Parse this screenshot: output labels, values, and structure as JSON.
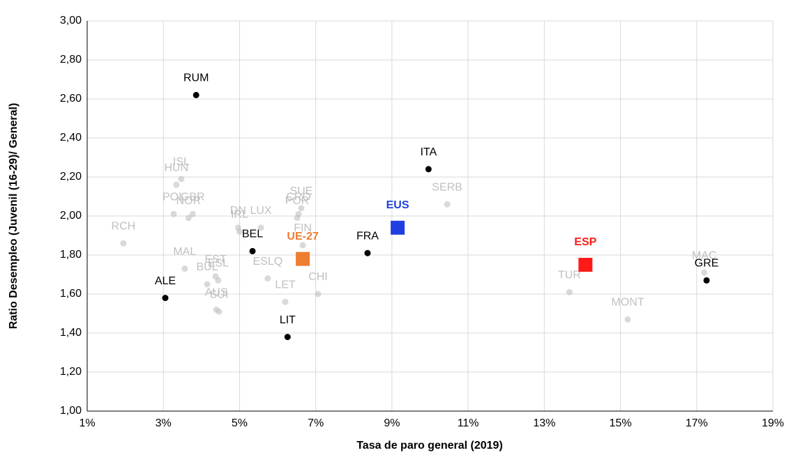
{
  "chart_data": {
    "type": "scatter",
    "x_label": "Tasa de paro general (2019)",
    "y_label": "Ratio Desempleo (Juvenil (16-29)/ General)",
    "xlim": [
      1,
      19
    ],
    "xticks": [
      {
        "value": 1,
        "label": "1%"
      },
      {
        "value": 3,
        "label": "3%"
      },
      {
        "value": 5,
        "label": "5%"
      },
      {
        "value": 7,
        "label": "7%"
      },
      {
        "value": 9,
        "label": "9%"
      },
      {
        "value": 11,
        "label": "11%"
      },
      {
        "value": 13,
        "label": "13%"
      },
      {
        "value": 15,
        "label": "15%"
      },
      {
        "value": 17,
        "label": "17%"
      },
      {
        "value": 19,
        "label": "19%"
      }
    ],
    "ylim": [
      1,
      3
    ],
    "yticks": [
      {
        "value": 1,
        "label": "1,00"
      },
      {
        "value": 1.2,
        "label": "1,20"
      },
      {
        "value": 1.4,
        "label": "1,40"
      },
      {
        "value": 1.6,
        "label": "1,60"
      },
      {
        "value": 1.8,
        "label": "1,80"
      },
      {
        "value": 2,
        "label": "2,00"
      },
      {
        "value": 2.2,
        "label": "2,20"
      },
      {
        "value": 2.4,
        "label": "2,40"
      },
      {
        "value": 2.6,
        "label": "2,60"
      },
      {
        "value": 2.8,
        "label": "2,80"
      },
      {
        "value": 3,
        "label": "3,00"
      }
    ],
    "grid": true,
    "points": [
      {
        "label": "RCH",
        "x": 1.95,
        "y": 1.86,
        "color": "#c0c0c0",
        "marker": "circle"
      },
      {
        "label": "ISL",
        "x": 3.47,
        "y": 2.19,
        "color": "#c0c0c0",
        "marker": "circle"
      },
      {
        "label": "HUN",
        "x": 3.34,
        "y": 2.16,
        "color": "#c0c0c0",
        "marker": "circle"
      },
      {
        "label": "POL",
        "x": 3.27,
        "y": 2.01,
        "color": "#c0c0c0",
        "marker": "circle"
      },
      {
        "label": "GBR",
        "x": 3.77,
        "y": 2.01,
        "color": "#c0c0c0",
        "marker": "circle"
      },
      {
        "label": "NOR",
        "x": 3.66,
        "y": 1.99,
        "color": "#c0c0c0",
        "marker": "circle"
      },
      {
        "label": "DN",
        "x": 4.96,
        "y": 1.94,
        "color": "#c0c0c0",
        "marker": "circle"
      },
      {
        "label": "IRL",
        "x": 5.0,
        "y": 1.92,
        "color": "#c0c0c0",
        "marker": "circle"
      },
      {
        "label": "LUX",
        "x": 5.56,
        "y": 1.94,
        "color": "#c0c0c0",
        "marker": "circle"
      },
      {
        "label": "CRO",
        "x": 6.55,
        "y": 2.01,
        "color": "#c0c0c0",
        "marker": "circle"
      },
      {
        "label": "SUE",
        "x": 6.62,
        "y": 2.04,
        "color": "#c0c0c0",
        "marker": "circle"
      },
      {
        "label": "POR",
        "x": 6.51,
        "y": 1.99,
        "color": "#c0c0c0",
        "marker": "circle"
      },
      {
        "label": "FIN",
        "x": 6.66,
        "y": 1.85,
        "color": "#c0c0c0",
        "marker": "circle"
      },
      {
        "label": "SERB",
        "x": 10.45,
        "y": 2.06,
        "color": "#c0c0c0",
        "marker": "circle"
      },
      {
        "label": "MAL",
        "x": 3.56,
        "y": 1.73,
        "color": "#c0c0c0",
        "marker": "circle"
      },
      {
        "label": "EST",
        "x": 4.37,
        "y": 1.69,
        "color": "#c0c0c0",
        "marker": "circle"
      },
      {
        "label": "BUL",
        "x": 4.15,
        "y": 1.65,
        "color": "#c0c0c0",
        "marker": "circle"
      },
      {
        "label": "ESL",
        "x": 4.44,
        "y": 1.67,
        "color": "#c0c0c0",
        "marker": "circle"
      },
      {
        "label": "ESLQ",
        "x": 5.74,
        "y": 1.68,
        "color": "#c0c0c0",
        "marker": "circle"
      },
      {
        "label": "CHI",
        "x": 7.06,
        "y": 1.6,
        "color": "#c0c0c0",
        "marker": "circle"
      },
      {
        "label": "AUS",
        "x": 4.39,
        "y": 1.52,
        "color": "#c0c0c0",
        "marker": "circle"
      },
      {
        "label": "SUI",
        "x": 4.46,
        "y": 1.51,
        "color": "#c0c0c0",
        "marker": "circle"
      },
      {
        "label": "LET",
        "x": 6.2,
        "y": 1.56,
        "color": "#c0c0c0",
        "marker": "circle"
      },
      {
        "label": "TUR",
        "x": 13.66,
        "y": 1.61,
        "color": "#c0c0c0",
        "marker": "circle"
      },
      {
        "label": "MONT",
        "x": 15.19,
        "y": 1.47,
        "color": "#c0c0c0",
        "marker": "circle"
      },
      {
        "label": "MAC",
        "x": 17.2,
        "y": 1.71,
        "color": "#c0c0c0",
        "marker": "circle"
      },
      {
        "label": "RUM",
        "x": 3.86,
        "y": 2.62,
        "color": "#000000",
        "marker": "circle"
      },
      {
        "label": "ITA",
        "x": 9.96,
        "y": 2.24,
        "color": "#000000",
        "marker": "circle"
      },
      {
        "label": "BEL",
        "x": 5.34,
        "y": 1.82,
        "color": "#000000",
        "marker": "circle"
      },
      {
        "label": "FRA",
        "x": 8.36,
        "y": 1.81,
        "color": "#000000",
        "marker": "circle"
      },
      {
        "label": "ALE",
        "x": 3.05,
        "y": 1.58,
        "color": "#000000",
        "marker": "circle"
      },
      {
        "label": "LIT",
        "x": 6.26,
        "y": 1.38,
        "color": "#000000",
        "marker": "circle"
      },
      {
        "label": "GRE",
        "x": 17.26,
        "y": 1.67,
        "color": "#000000",
        "marker": "circle"
      },
      {
        "label": "EUS",
        "x": 9.15,
        "y": 1.94,
        "color": "#1f3fe0",
        "marker": "square"
      },
      {
        "label": "UE-27",
        "x": 6.66,
        "y": 1.78,
        "color": "#ed7d31",
        "marker": "square"
      },
      {
        "label": "ESP",
        "x": 14.08,
        "y": 1.75,
        "color": "#ff1a1a",
        "marker": "square"
      }
    ]
  }
}
